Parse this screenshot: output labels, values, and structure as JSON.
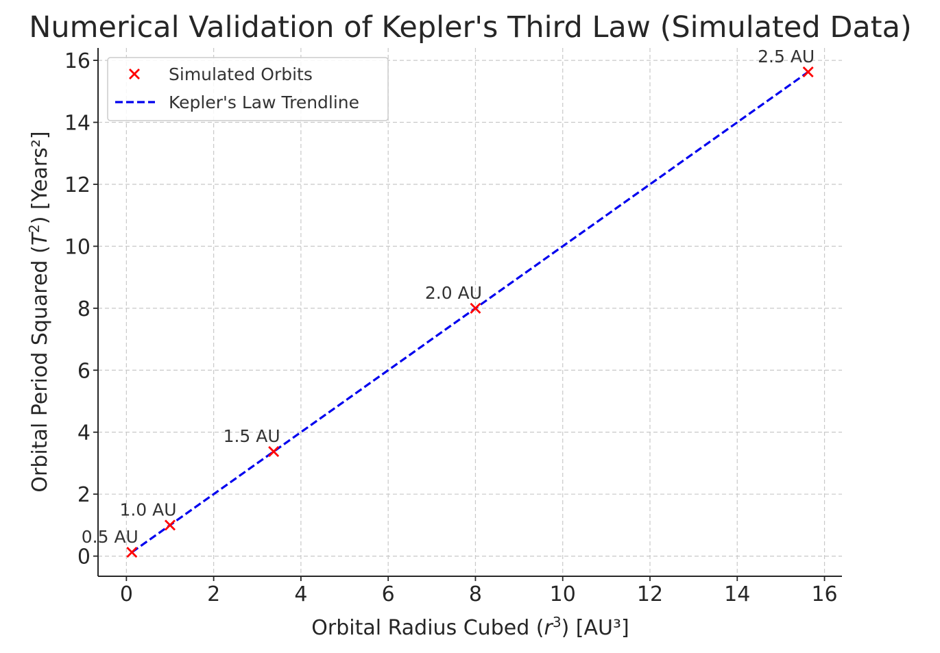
{
  "chart_data": {
    "type": "scatter",
    "title": "Numerical Validation of Kepler's Third Law (Simulated Data)",
    "xlabel": {
      "prefix": "Orbital Radius Cubed (",
      "var": "r",
      "sup": "3",
      "suffix": ") [AU³]"
    },
    "ylabel": {
      "prefix": "Orbital Period Squared (",
      "var": "T",
      "sup": "2",
      "suffix": ") [Years²]"
    },
    "xlim": [
      -0.65,
      16.4
    ],
    "ylim": [
      -0.65,
      16.4
    ],
    "xticks": [
      0,
      2,
      4,
      6,
      8,
      10,
      12,
      14,
      16
    ],
    "yticks": [
      0,
      2,
      4,
      6,
      8,
      10,
      12,
      14,
      16
    ],
    "grid": true,
    "legend_position": "top-left",
    "series": [
      {
        "name": "Simulated Orbits",
        "kind": "scatter",
        "marker": "x",
        "color": "#ff0000",
        "x": [
          0.125,
          1.0,
          3.375,
          8.0,
          15.625
        ],
        "y": [
          0.125,
          1.0,
          3.375,
          8.0,
          15.625
        ],
        "labels": [
          "0.5 AU",
          "1.0 AU",
          "1.5 AU",
          "2.0 AU",
          "2.5 AU"
        ]
      },
      {
        "name": "Kepler's Law Trendline",
        "kind": "line",
        "style": "dashed",
        "color": "#0000ee",
        "x": [
          0.125,
          15.625
        ],
        "y": [
          0.125,
          15.625
        ]
      }
    ]
  }
}
